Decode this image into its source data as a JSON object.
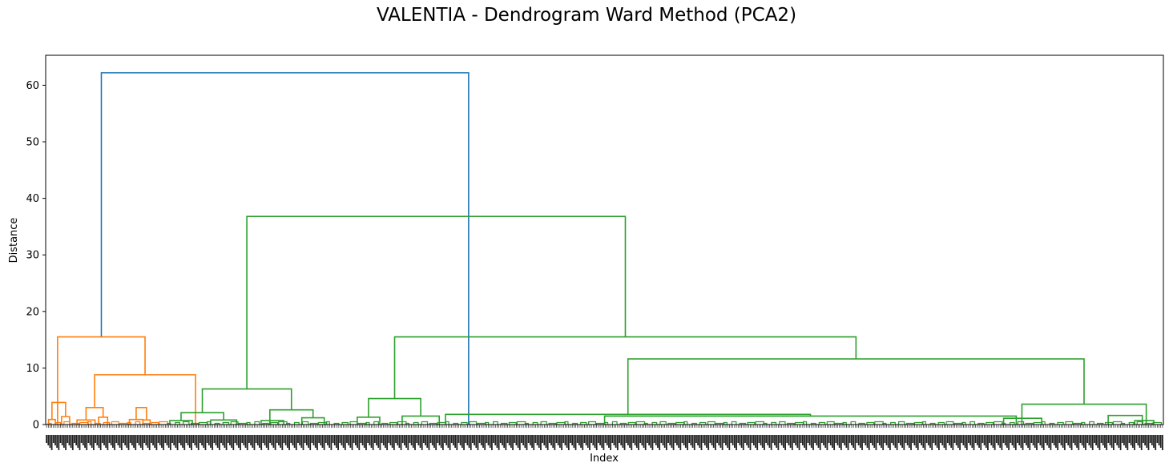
{
  "chart_data": {
    "type": "dendrogram",
    "title": "VALENTIA - Dendrogram Ward Method (PCA2)",
    "xlabel": "Index",
    "ylabel": "Distance",
    "ylim": [
      0,
      65.3
    ],
    "yticks": [
      0,
      10,
      20,
      30,
      40,
      50,
      60
    ],
    "leaf_count": 640,
    "leaf_labels_legible": false,
    "grid": false,
    "colors": {
      "root": "#1f77b4",
      "cluster1": "#ff7f0e",
      "cluster2": "#2ca02c"
    },
    "links": [
      {
        "left": 93.9,
        "right": 713.3,
        "height": 62.2,
        "color": "root"
      },
      {
        "left": 20.1,
        "right": 167.6,
        "height": 15.5,
        "color": "cluster1"
      },
      {
        "left": 10.6,
        "right": 33.6,
        "height": 3.9,
        "color": "cluster1"
      },
      {
        "left": 4.9,
        "right": 16.3,
        "height": 0.9,
        "color": "cluster1"
      },
      {
        "left": 26.8,
        "right": 40.4,
        "height": 1.4,
        "color": "cluster1"
      },
      {
        "left": 82.5,
        "right": 252.7,
        "height": 8.8,
        "color": "cluster1"
      },
      {
        "left": 68.1,
        "right": 96.9,
        "height": 3.0,
        "color": "cluster1"
      },
      {
        "left": 52.9,
        "right": 83.3,
        "height": 0.8,
        "color": "cluster1"
      },
      {
        "left": 89.3,
        "right": 104.5,
        "height": 1.3,
        "color": "cluster1"
      },
      {
        "left": 141.2,
        "right": 164.0,
        "height": 0.9,
        "color": "cluster1"
      },
      {
        "left": 164.0,
        "right": 176.1,
        "height": 0.8,
        "color": "cluster1"
      },
      {
        "left": 152.6,
        "right": 170.1,
        "height": 3.0,
        "color": "cluster1"
      },
      {
        "left": 339.3,
        "right": 977.6,
        "height": 36.8,
        "color": "cluster2"
      },
      {
        "left": 264.2,
        "right": 414.5,
        "height": 6.3,
        "color": "cluster2"
      },
      {
        "left": 228.3,
        "right": 300.2,
        "height": 2.1,
        "color": "cluster2"
      },
      {
        "left": 209.4,
        "right": 247.3,
        "height": 0.7,
        "color": "cluster2"
      },
      {
        "left": 278.3,
        "right": 322.0,
        "height": 0.8,
        "color": "cluster2"
      },
      {
        "left": 378.1,
        "right": 450.9,
        "height": 2.6,
        "color": "cluster2"
      },
      {
        "left": 363.4,
        "right": 401.3,
        "height": 0.7,
        "color": "cluster2"
      },
      {
        "left": 432.0,
        "right": 469.8,
        "height": 1.2,
        "color": "cluster2"
      },
      {
        "left": 588.5,
        "right": 1366.6,
        "height": 15.5,
        "color": "cluster2"
      },
      {
        "left": 544.5,
        "right": 632.5,
        "height": 4.6,
        "color": "cluster2"
      },
      {
        "left": 525.5,
        "right": 563.4,
        "height": 1.3,
        "color": "cluster2"
      },
      {
        "left": 601.2,
        "right": 663.8,
        "height": 1.5,
        "color": "cluster2"
      },
      {
        "left": 982.0,
        "right": 1751.2,
        "height": 11.6,
        "color": "cluster2"
      },
      {
        "left": 674.3,
        "right": 1289.8,
        "height": 1.8,
        "color": "cluster2"
      },
      {
        "left": 942.6,
        "right": 1636.9,
        "height": 1.5,
        "color": "cluster2"
      },
      {
        "left": 1646.4,
        "right": 1856.1,
        "height": 3.6,
        "color": "cluster2"
      },
      {
        "left": 1615.6,
        "right": 1679.8,
        "height": 1.1,
        "color": "cluster2"
      },
      {
        "left": 1791.9,
        "right": 1849.4,
        "height": 1.6,
        "color": "cluster2"
      },
      {
        "left": 1836.7,
        "right": 1868.9,
        "height": 0.7,
        "color": "cluster2"
      }
    ],
    "x_range": [
      0,
      1885
    ]
  }
}
